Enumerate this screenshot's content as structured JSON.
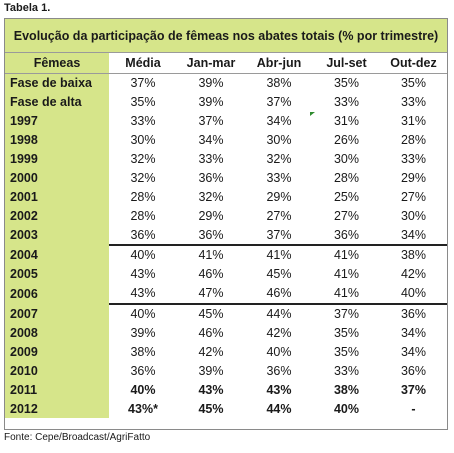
{
  "caption": "Tabela 1.",
  "title": "Evolução da participação de fêmeas nos abates totais (% por trimestre)",
  "headers": [
    "Fêmeas",
    "Média",
    "Jan-mar",
    "Abr-jun",
    "Jul-set",
    "Out-dez"
  ],
  "rows": [
    {
      "label": "Fase de baixa",
      "values": [
        "37%",
        "39%",
        "38%",
        "35%",
        "35%"
      ]
    },
    {
      "label": "Fase de alta",
      "values": [
        "35%",
        "39%",
        "37%",
        "33%",
        "33%"
      ]
    },
    {
      "label": "1997",
      "values": [
        "33%",
        "37%",
        "34%",
        "31%",
        "31%"
      ]
    },
    {
      "label": "1998",
      "values": [
        "30%",
        "34%",
        "30%",
        "26%",
        "28%"
      ]
    },
    {
      "label": "1999",
      "values": [
        "32%",
        "33%",
        "32%",
        "30%",
        "33%"
      ]
    },
    {
      "label": "2000",
      "values": [
        "32%",
        "36%",
        "33%",
        "28%",
        "29%"
      ]
    },
    {
      "label": "2001",
      "values": [
        "28%",
        "32%",
        "29%",
        "25%",
        "27%"
      ]
    },
    {
      "label": "2002",
      "values": [
        "28%",
        "29%",
        "27%",
        "27%",
        "30%"
      ]
    },
    {
      "label": "2003",
      "values": [
        "36%",
        "36%",
        "37%",
        "36%",
        "34%"
      ]
    },
    {
      "label": "2004",
      "values": [
        "40%",
        "41%",
        "41%",
        "41%",
        "38%"
      ]
    },
    {
      "label": "2005",
      "values": [
        "43%",
        "46%",
        "45%",
        "41%",
        "42%"
      ]
    },
    {
      "label": "2006",
      "values": [
        "43%",
        "47%",
        "46%",
        "41%",
        "40%"
      ]
    },
    {
      "label": "2007",
      "values": [
        "40%",
        "45%",
        "44%",
        "37%",
        "36%"
      ]
    },
    {
      "label": "2008",
      "values": [
        "39%",
        "46%",
        "42%",
        "35%",
        "34%"
      ]
    },
    {
      "label": "2009",
      "values": [
        "38%",
        "42%",
        "40%",
        "35%",
        "34%"
      ]
    },
    {
      "label": "2010",
      "values": [
        "36%",
        "39%",
        "36%",
        "33%",
        "36%"
      ]
    },
    {
      "label": "2011",
      "values": [
        "40%",
        "43%",
        "43%",
        "38%",
        "37%"
      ]
    },
    {
      "label": "2012",
      "values": [
        "43%*",
        "45%",
        "44%",
        "40%",
        "-"
      ]
    }
  ],
  "source": "Fonte: Cepe/Broadcast/AgriFatto",
  "colors": {
    "accent": "#d6e58a",
    "marker": "#2e8b2e"
  }
}
